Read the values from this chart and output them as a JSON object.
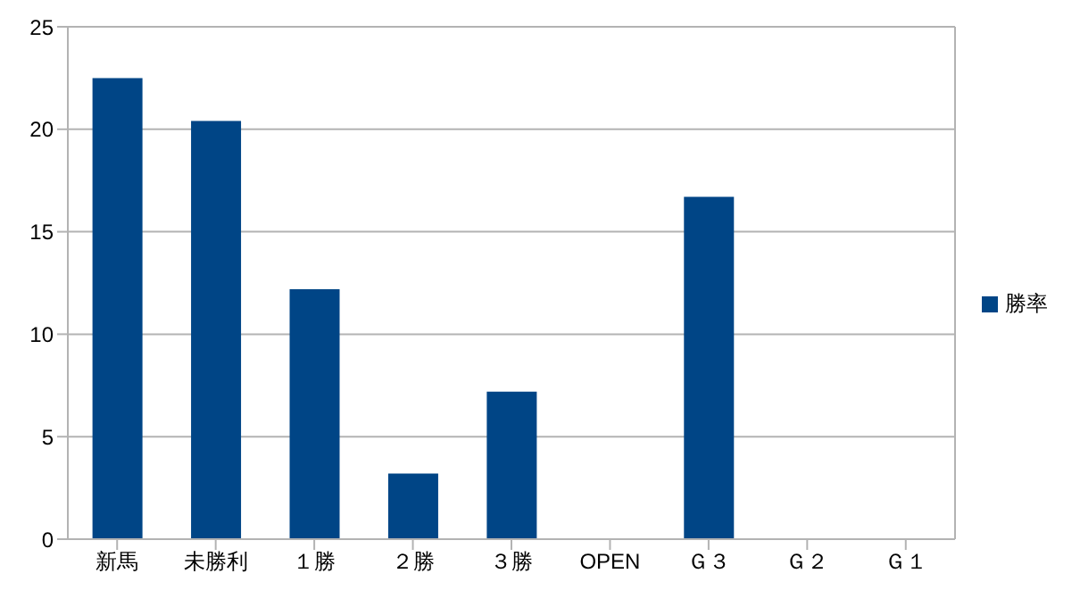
{
  "chart_data": {
    "type": "bar",
    "categories": [
      "新馬",
      "未勝利",
      "１勝",
      "２勝",
      "３勝",
      "OPEN",
      "Ｇ３",
      "Ｇ２",
      "Ｇ１"
    ],
    "series": [
      {
        "name": "勝率",
        "color": "#004586",
        "values": [
          22.5,
          20.4,
          12.2,
          3.2,
          7.2,
          0,
          16.7,
          0,
          0
        ]
      }
    ],
    "ylim": [
      0,
      25
    ],
    "yticks": [
      0,
      5,
      10,
      15,
      20,
      25
    ],
    "grid": "y",
    "legend": "right"
  }
}
